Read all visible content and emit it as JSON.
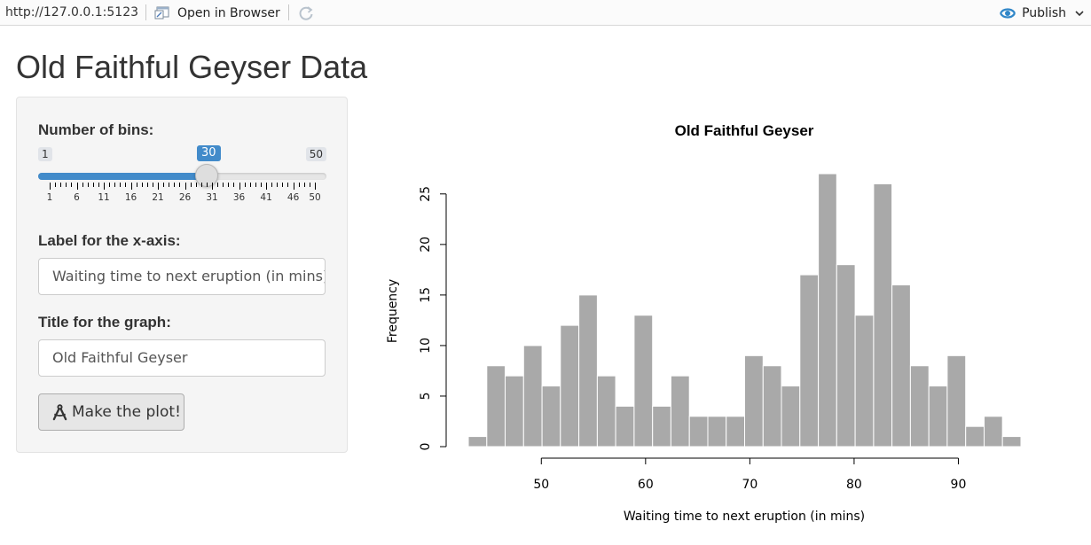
{
  "toolbar": {
    "url": "http://127.0.0.1:5123",
    "open_in_browser": "Open in Browser",
    "publish": "Publish"
  },
  "page": {
    "title": "Old Faithful Geyser Data"
  },
  "sidebar": {
    "bins_label": "Number of bins:",
    "slider": {
      "min": 1,
      "max": 50,
      "value": 30,
      "min_label": "1",
      "max_label": "50",
      "value_label": "30",
      "tick_labels": [
        "1",
        "6",
        "11",
        "16",
        "21",
        "26",
        "31",
        "36",
        "41",
        "46",
        "50"
      ]
    },
    "xaxis_label": "Label for the x-axis:",
    "xaxis_value": "Waiting time to next eruption (in mins)",
    "title_label": "Title for the graph:",
    "title_value": "Old Faithful Geyser",
    "button_label": "Make the plot!"
  },
  "colors": {
    "accent": "#428bca",
    "bar": "#a9a9a9"
  },
  "chart_data": {
    "type": "bar",
    "title": "Old Faithful Geyser",
    "xlabel": "Waiting time to next eruption (in mins)",
    "ylabel": "Frequency",
    "bin_edges": [
      43.0,
      44.77,
      46.53,
      48.3,
      50.07,
      51.83,
      53.6,
      55.37,
      57.13,
      58.9,
      60.67,
      62.43,
      64.2,
      65.97,
      67.73,
      69.5,
      71.27,
      73.03,
      74.8,
      76.57,
      78.33,
      80.1,
      81.87,
      83.63,
      85.4,
      87.17,
      88.93,
      90.7,
      92.47,
      94.23,
      96.0
    ],
    "values": [
      1,
      8,
      7,
      10,
      6,
      12,
      15,
      7,
      4,
      13,
      4,
      7,
      3,
      3,
      3,
      9,
      8,
      6,
      17,
      27,
      18,
      13,
      26,
      16,
      8,
      6,
      9,
      2,
      3,
      1
    ],
    "xticks": [
      50,
      60,
      70,
      80,
      90
    ],
    "yticks": [
      0,
      5,
      10,
      15,
      20,
      25
    ],
    "xlim": [
      43,
      96
    ],
    "ylim": [
      0,
      27
    ],
    "grid": false
  }
}
